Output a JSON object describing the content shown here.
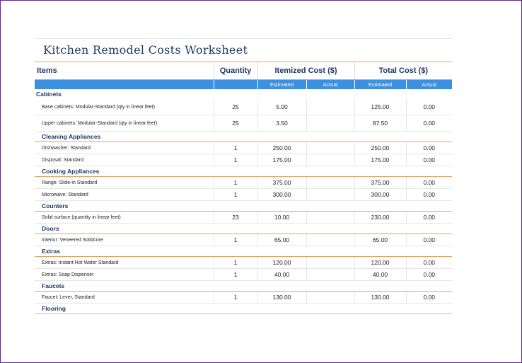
{
  "title": "Kitchen Remodel Costs Worksheet",
  "headers": {
    "items": "Items",
    "quantity": "Quantity",
    "itemized": "Itemized Cost ($)",
    "total": "Total Cost ($)",
    "estimated": "Estimated",
    "actual": "Actual"
  },
  "sections": [
    {
      "category": "Cabinets",
      "rows": [
        {
          "item": "Base cabinets: Modular-Standard (qty in linear feet)",
          "qty": "25",
          "item_est": "5.00",
          "item_act": "",
          "total_est": "125.00",
          "total_act": "0.00"
        },
        {
          "item": "Upper cabinets: Modular-Standard (qty in linear feet)",
          "qty": "25",
          "item_est": "3.50",
          "item_act": "",
          "total_est": "87.50",
          "total_act": "0.00"
        }
      ]
    },
    {
      "category": "Cleaning Appliances",
      "rows": [
        {
          "item": "Dishwasher: Standard",
          "qty": "1",
          "item_est": "250.00",
          "item_act": "",
          "total_est": "250.00",
          "total_act": "0.00"
        },
        {
          "item": "Disposal: Standard",
          "qty": "1",
          "item_est": "175.00",
          "item_act": "",
          "total_est": "175.00",
          "total_act": "0.00"
        }
      ]
    },
    {
      "category": "Cooking Appliances",
      "rows": [
        {
          "item": "Range: Slide-in Standard",
          "qty": "1",
          "item_est": "375.00",
          "item_act": "",
          "total_est": "375.00",
          "total_act": "0.00"
        },
        {
          "item": "Microwave: Standard",
          "qty": "1",
          "item_est": "300.00",
          "item_act": "",
          "total_est": "300.00",
          "total_act": "0.00"
        }
      ]
    },
    {
      "category": "Counters",
      "rows": [
        {
          "item": "Solid surface (quantity in linear feet)",
          "qty": "23",
          "item_est": "10.00",
          "item_act": "",
          "total_est": "230.00",
          "total_act": "0.00"
        }
      ]
    },
    {
      "category": "Doors",
      "rows": [
        {
          "item": "Interior: Veneered Solidcore",
          "qty": "1",
          "item_est": "65.00",
          "item_act": "",
          "total_est": "65.00",
          "total_act": "0.00"
        }
      ]
    },
    {
      "category": "Extras",
      "rows": [
        {
          "item": "Extras: Instant Hot Water Standard",
          "qty": "1",
          "item_est": "120.00",
          "item_act": "",
          "total_est": "120.00",
          "total_act": "0.00"
        },
        {
          "item": "Extras: Soap Dispenser",
          "qty": "1",
          "item_est": "40.00",
          "item_act": "",
          "total_est": "40.00",
          "total_act": "0.00"
        }
      ]
    },
    {
      "category": "Faucets",
      "rows": [
        {
          "item": "Faucet: Lever, Standard",
          "qty": "1",
          "item_est": "130.00",
          "item_act": "",
          "total_est": "130.00",
          "total_act": "0.00"
        }
      ]
    },
    {
      "category": "Flooring",
      "rows": []
    }
  ]
}
